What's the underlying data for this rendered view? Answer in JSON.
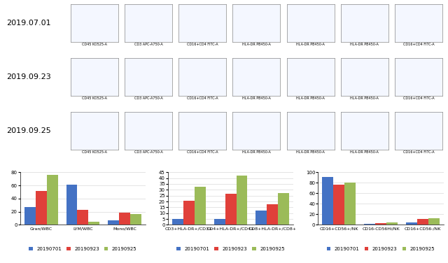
{
  "flow_panels": {
    "rows": [
      "2019.07.01",
      "2019.09.23",
      "2019.09.25"
    ],
    "x_labels": [
      "CD45 KO525-A",
      "CD3 APC-A750-A",
      "CD16+CD4 FITC-A",
      "HLA-DR PB450-A",
      "HLA-DR PB450-A",
      "HLA-DR PB450-A",
      "CD16+CD4 FITC-A"
    ]
  },
  "chart_data": [
    {
      "type": "bar",
      "categories": [
        "Gran/WBC",
        "LYM/WBC",
        "Mono/WBC"
      ],
      "series": [
        {
          "name": "20190701",
          "color": "#4472c4",
          "values": [
            27,
            61,
            7
          ]
        },
        {
          "name": "20190923",
          "color": "#e0403a",
          "values": [
            52,
            23,
            19
          ]
        },
        {
          "name": "20190925",
          "color": "#9bbb59",
          "values": [
            76,
            5,
            16
          ]
        }
      ],
      "ylim": [
        0,
        80
      ],
      "yticks": [
        0,
        20,
        40,
        60,
        80
      ],
      "legend": "lower center"
    },
    {
      "type": "bar",
      "categories": [
        "CD3+HLA-DR+/CD3+",
        "CD4+HLA-DR+/CD4+",
        "CD8+HLA-DR+/CD8+"
      ],
      "series": [
        {
          "name": "20190701",
          "color": "#4472c4",
          "values": [
            5,
            5,
            12.5
          ]
        },
        {
          "name": "20190923",
          "color": "#e0403a",
          "values": [
            20.5,
            26.5,
            17.5
          ]
        },
        {
          "name": "20190925",
          "color": "#9bbb59",
          "values": [
            32.5,
            42,
            27
          ]
        }
      ],
      "ylim": [
        0,
        45
      ],
      "yticks": [
        0,
        5,
        10,
        15,
        20,
        25,
        30,
        35,
        40,
        45
      ],
      "legend": "lower center"
    },
    {
      "type": "bar",
      "categories": [
        "CD16+CD56+/NK",
        "CD16-CD56Hi/NK",
        "CD16+CD56-/NK"
      ],
      "series": [
        {
          "name": "20190701",
          "color": "#4472c4",
          "values": [
            91,
            2,
            5
          ]
        },
        {
          "name": "20190923",
          "color": "#e0403a",
          "values": [
            77,
            3,
            11
          ]
        },
        {
          "name": "20190925",
          "color": "#9bbb59",
          "values": [
            80,
            4,
            12
          ]
        }
      ],
      "ylim": [
        0,
        100
      ],
      "yticks": [
        0,
        20,
        40,
        60,
        80,
        100
      ],
      "legend": "lower center"
    }
  ]
}
